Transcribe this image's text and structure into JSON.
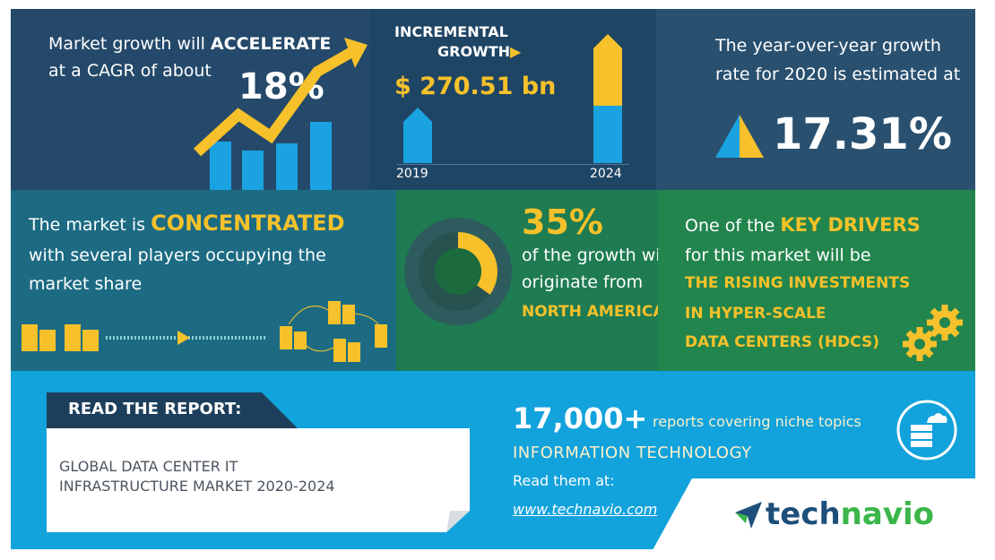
{
  "growth": {
    "line1_prefix": "Market growth will ",
    "line1_bold": "ACCELERATE",
    "line2": "at a CAGR of about",
    "cagr": "18%"
  },
  "incremental": {
    "title_line1": "INCREMENTAL",
    "title_line2": "GROWTH",
    "value": "$ 270.51 bn",
    "year_start": "2019",
    "year_end": "2024"
  },
  "yoy": {
    "line1": "The year-over-year growth",
    "line2": "rate for 2020 is estimated at",
    "value": "17.31%"
  },
  "concentration": {
    "line1_prefix": "The market is ",
    "line1_bold": "CONCENTRATED",
    "line2": "with several players occupying the",
    "line3": "market share"
  },
  "region": {
    "percent": "35%",
    "share_fraction": 0.35,
    "line1": "of the growth will",
    "line2": "originate from",
    "region_name": "NORTH AMERICA"
  },
  "drivers": {
    "line1_prefix": "One of the ",
    "line1_bold": "KEY DRIVERS",
    "line2": "for this market will be",
    "d1": "THE RISING INVESTMENTS",
    "d2": "IN HYPER-SCALE",
    "d3": "DATA CENTERS (HDCS)"
  },
  "report": {
    "read_label": "READ THE REPORT:",
    "title_line1": "GLOBAL DATA CENTER IT",
    "title_line2": "INFRASTRUCTURE MARKET 2020-2024",
    "count": "17,000+",
    "count_desc": "reports covering niche topics",
    "category": "INFORMATION TECHNOLOGY",
    "read_at": "Read them at:",
    "url": "www.technavio.com"
  },
  "brand": {
    "part1": "tech",
    "part2": "navio",
    "color1": "#1d4f7a",
    "color2": "#3bb64a"
  },
  "colors": {
    "yellow": "#f6c12a",
    "blue": "#1aa3e0",
    "dark": "#1d3f5b"
  }
}
